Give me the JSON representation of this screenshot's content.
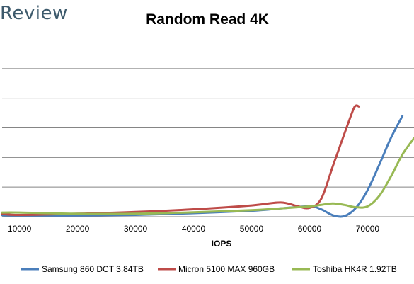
{
  "brand": {
    "text": "Review"
  },
  "chart_data": {
    "type": "line",
    "title": "Random Read 4K",
    "xlabel": "IOPS",
    "ylabel": "",
    "xlim": [
      7000,
      78000
    ],
    "x_ticks": [
      10000,
      20000,
      30000,
      40000,
      50000,
      60000,
      70000
    ],
    "ylim": [
      0,
      6
    ],
    "y_gridlines": [
      1,
      2,
      3,
      4,
      5
    ],
    "y_tick_labels_visible": false,
    "grid": true,
    "legend_position": "bottom",
    "series": [
      {
        "name": "Samsung 860 DCT 3.84TB",
        "color": "#4a7ebb",
        "points": [
          [
            7000,
            0.05
          ],
          [
            10000,
            0.04
          ],
          [
            20000,
            0.04
          ],
          [
            30000,
            0.06
          ],
          [
            40000,
            0.12
          ],
          [
            50000,
            0.2
          ],
          [
            55000,
            0.28
          ],
          [
            60000,
            0.35
          ],
          [
            62000,
            0.25
          ],
          [
            64000,
            0.05
          ],
          [
            66000,
            0.02
          ],
          [
            68000,
            0.3
          ],
          [
            70000,
            0.9
          ],
          [
            72000,
            1.75
          ],
          [
            74000,
            2.65
          ],
          [
            76000,
            3.4
          ]
        ]
      },
      {
        "name": "Micron 5100 MAX 960GB",
        "color": "#be4b48",
        "points": [
          [
            7000,
            0.1
          ],
          [
            10000,
            0.06
          ],
          [
            20000,
            0.1
          ],
          [
            30000,
            0.16
          ],
          [
            40000,
            0.25
          ],
          [
            50000,
            0.38
          ],
          [
            55000,
            0.48
          ],
          [
            58000,
            0.35
          ],
          [
            60000,
            0.3
          ],
          [
            62000,
            0.6
          ],
          [
            64000,
            1.7
          ],
          [
            66000,
            2.8
          ],
          [
            67500,
            3.6
          ],
          [
            68000,
            3.75
          ],
          [
            68500,
            3.72
          ]
        ]
      },
      {
        "name": "Toshiba HK4R 1.92TB",
        "color": "#98b954",
        "points": [
          [
            7000,
            0.14
          ],
          [
            10000,
            0.14
          ],
          [
            20000,
            0.1
          ],
          [
            30000,
            0.1
          ],
          [
            40000,
            0.15
          ],
          [
            50000,
            0.22
          ],
          [
            55000,
            0.28
          ],
          [
            60000,
            0.35
          ],
          [
            62000,
            0.4
          ],
          [
            64000,
            0.45
          ],
          [
            66000,
            0.4
          ],
          [
            68000,
            0.32
          ],
          [
            70000,
            0.35
          ],
          [
            72000,
            0.7
          ],
          [
            74000,
            1.35
          ],
          [
            76000,
            2.1
          ],
          [
            78000,
            2.65
          ]
        ]
      }
    ]
  }
}
